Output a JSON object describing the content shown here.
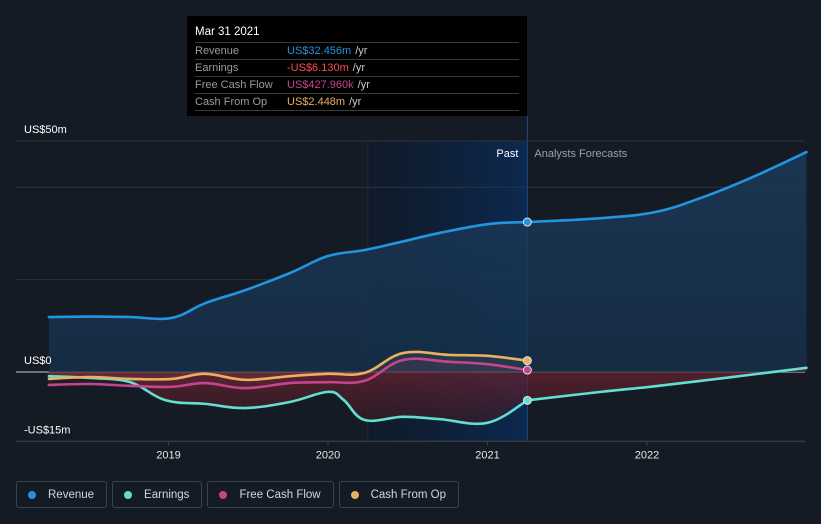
{
  "tooltip": {
    "date": "Mar 31 2021",
    "rows": [
      {
        "name": "Revenue",
        "value": "US$32.456m",
        "unit": "/yr",
        "color": "#2394df"
      },
      {
        "name": "Earnings",
        "value": "-US$6.130m",
        "unit": "/yr",
        "color": "#ff4d4d"
      },
      {
        "name": "Free Cash Flow",
        "value": "US$427.960k",
        "unit": "/yr",
        "color": "#c4458b"
      },
      {
        "name": "Cash From Op",
        "value": "US$2.448m",
        "unit": "/yr",
        "color": "#e9b062"
      }
    ]
  },
  "regions": {
    "past_label": "Past",
    "forecast_label": "Analysts Forecasts"
  },
  "legend": [
    {
      "label": "Revenue",
      "color": "#2394df"
    },
    {
      "label": "Earnings",
      "color": "#62dfd0"
    },
    {
      "label": "Free Cash Flow",
      "color": "#c4458b"
    },
    {
      "label": "Cash From Op",
      "color": "#e9b062"
    }
  ],
  "chart_data": {
    "type": "line",
    "title": "",
    "xlabel": "",
    "ylabel": "",
    "x_unit": "year",
    "xlim": [
      2018.25,
      2023.0
    ],
    "ylim": [
      -15,
      50
    ],
    "y_tick_labels": [
      {
        "value": 50,
        "label": "US$50m"
      },
      {
        "value": 0,
        "label": "US$0"
      },
      {
        "value": -15,
        "label": "-US$15m"
      }
    ],
    "gridlines": [
      50,
      40,
      20,
      0,
      -15
    ],
    "x_tick_labels": [
      {
        "value": 2019,
        "label": "2019"
      },
      {
        "value": 2020,
        "label": "2020"
      },
      {
        "value": 2021,
        "label": "2021"
      },
      {
        "value": 2022,
        "label": "2022"
      }
    ],
    "past_region": [
      2020.25,
      2021.25
    ],
    "highlight_x": 2021.25,
    "series": [
      {
        "name": "Revenue",
        "color": "#2394df",
        "fill": true,
        "points": [
          [
            2018.25,
            11.9
          ],
          [
            2018.51,
            12.0
          ],
          [
            2018.76,
            11.9
          ],
          [
            2019.02,
            11.7
          ],
          [
            2019.23,
            14.9
          ],
          [
            2019.48,
            17.7
          ],
          [
            2019.76,
            21.4
          ],
          [
            2020.0,
            25.1
          ],
          [
            2020.23,
            26.4
          ],
          [
            2020.45,
            28.1
          ],
          [
            2020.7,
            30.1
          ],
          [
            2021.0,
            32.0
          ],
          [
            2021.25,
            32.46
          ]
        ],
        "forecast": [
          [
            2021.25,
            32.46
          ],
          [
            2021.71,
            33.3
          ],
          [
            2022.05,
            34.6
          ],
          [
            2022.34,
            37.7
          ],
          [
            2022.65,
            42.0
          ],
          [
            2023.0,
            47.6
          ]
        ]
      },
      {
        "name": "Earnings",
        "color": "#62dfd0",
        "fill": true,
        "points": [
          [
            2018.25,
            -0.9
          ],
          [
            2018.51,
            -1.3
          ],
          [
            2018.76,
            -2.2
          ],
          [
            2018.98,
            -6.1
          ],
          [
            2019.23,
            -6.9
          ],
          [
            2019.48,
            -7.8
          ],
          [
            2019.76,
            -6.5
          ],
          [
            2020.0,
            -4.3
          ],
          [
            2020.1,
            -6.1
          ],
          [
            2020.23,
            -10.4
          ],
          [
            2020.47,
            -9.7
          ],
          [
            2020.7,
            -10.2
          ],
          [
            2021.0,
            -11.0
          ],
          [
            2021.25,
            -6.13
          ]
        ],
        "forecast": [
          [
            2021.25,
            -6.13
          ],
          [
            2021.71,
            -4.3
          ],
          [
            2022.02,
            -3.2
          ],
          [
            2022.34,
            -1.9
          ],
          [
            2022.65,
            -0.6
          ],
          [
            2023.0,
            0.9
          ]
        ]
      },
      {
        "name": "Free Cash Flow",
        "color": "#c4458b",
        "fill": true,
        "points": [
          [
            2018.25,
            -2.8
          ],
          [
            2018.51,
            -2.6
          ],
          [
            2018.76,
            -3.0
          ],
          [
            2019.02,
            -3.2
          ],
          [
            2019.23,
            -2.4
          ],
          [
            2019.48,
            -3.5
          ],
          [
            2019.76,
            -2.4
          ],
          [
            2020.0,
            -2.2
          ],
          [
            2020.23,
            -1.9
          ],
          [
            2020.47,
            2.6
          ],
          [
            2020.76,
            2.2
          ],
          [
            2021.0,
            1.7
          ],
          [
            2021.25,
            0.43
          ]
        ]
      },
      {
        "name": "Cash From Op",
        "color": "#e9b062",
        "fill": true,
        "points": [
          [
            2018.25,
            -1.5
          ],
          [
            2018.51,
            -1.1
          ],
          [
            2018.76,
            -1.5
          ],
          [
            2019.02,
            -1.5
          ],
          [
            2019.23,
            -0.4
          ],
          [
            2019.48,
            -1.7
          ],
          [
            2019.76,
            -0.9
          ],
          [
            2020.0,
            -0.4
          ],
          [
            2020.23,
            -0.2
          ],
          [
            2020.47,
            4.1
          ],
          [
            2020.76,
            3.7
          ],
          [
            2021.0,
            3.5
          ],
          [
            2021.25,
            2.45
          ]
        ]
      }
    ]
  }
}
